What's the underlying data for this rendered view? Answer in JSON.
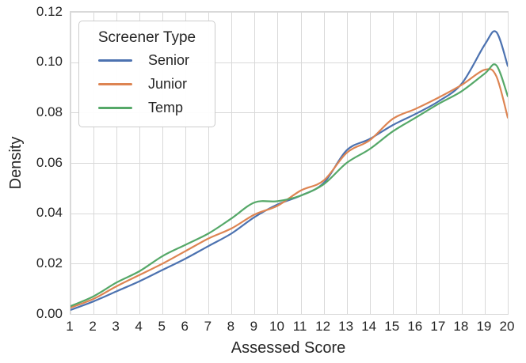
{
  "colors": {
    "background": "#ffffff",
    "grid": "#d9d9d9",
    "text": "#262626",
    "senior": "#4C72B0",
    "junior": "#DD8452",
    "temp": "#55A868"
  },
  "legend": {
    "title": "Screener Type"
  },
  "chart_data": {
    "type": "line",
    "title": "",
    "xlabel": "Assessed Score",
    "ylabel": "Density",
    "xlim": [
      1,
      20
    ],
    "ylim": [
      0,
      0.12
    ],
    "x_ticks": [
      1,
      2,
      3,
      4,
      5,
      6,
      7,
      8,
      9,
      10,
      11,
      12,
      13,
      14,
      15,
      16,
      17,
      18,
      19,
      20
    ],
    "y_ticks": [
      0.0,
      0.02,
      0.04,
      0.06,
      0.08,
      0.1,
      0.12
    ],
    "y_tick_labels": [
      "0.00",
      "0.02",
      "0.04",
      "0.06",
      "0.08",
      "0.10",
      "0.12"
    ],
    "grid": true,
    "legend_title": "Screener Type",
    "legend_position": "upper left",
    "series": [
      {
        "name": "Senior",
        "color": "#4C72B0",
        "points": [
          [
            1,
            0.0016
          ],
          [
            2,
            0.005
          ],
          [
            3,
            0.009
          ],
          [
            4,
            0.013
          ],
          [
            5,
            0.0175
          ],
          [
            6,
            0.022
          ],
          [
            7,
            0.027
          ],
          [
            8,
            0.032
          ],
          [
            9,
            0.0385
          ],
          [
            10,
            0.0435
          ],
          [
            11,
            0.047
          ],
          [
            12,
            0.052
          ],
          [
            13,
            0.065
          ],
          [
            14,
            0.0695
          ],
          [
            15,
            0.075
          ],
          [
            16,
            0.0795
          ],
          [
            17,
            0.0845
          ],
          [
            18,
            0.0915
          ],
          [
            19,
            0.107
          ],
          [
            19.5,
            0.112
          ],
          [
            20,
            0.0985
          ]
        ]
      },
      {
        "name": "Junior",
        "color": "#DD8452",
        "points": [
          [
            1,
            0.0025
          ],
          [
            2,
            0.006
          ],
          [
            3,
            0.011
          ],
          [
            4,
            0.0155
          ],
          [
            5,
            0.02
          ],
          [
            6,
            0.025
          ],
          [
            7,
            0.03
          ],
          [
            8,
            0.034
          ],
          [
            9,
            0.0395
          ],
          [
            10,
            0.043
          ],
          [
            11,
            0.049
          ],
          [
            12,
            0.053
          ],
          [
            13,
            0.064
          ],
          [
            14,
            0.069
          ],
          [
            15,
            0.0775
          ],
          [
            16,
            0.0815
          ],
          [
            17,
            0.086
          ],
          [
            18,
            0.091
          ],
          [
            19,
            0.097
          ],
          [
            19.5,
            0.0945
          ],
          [
            20,
            0.078
          ]
        ]
      },
      {
        "name": "Temp",
        "color": "#55A868",
        "points": [
          [
            1,
            0.0031
          ],
          [
            2,
            0.007
          ],
          [
            3,
            0.0125
          ],
          [
            4,
            0.017
          ],
          [
            5,
            0.023
          ],
          [
            6,
            0.0275
          ],
          [
            7,
            0.032
          ],
          [
            8,
            0.038
          ],
          [
            9,
            0.0443
          ],
          [
            10,
            0.0448
          ],
          [
            11,
            0.047
          ],
          [
            12,
            0.0515
          ],
          [
            13,
            0.06
          ],
          [
            14,
            0.0655
          ],
          [
            15,
            0.0725
          ],
          [
            16,
            0.078
          ],
          [
            17,
            0.0835
          ],
          [
            18,
            0.0885
          ],
          [
            19,
            0.0955
          ],
          [
            19.5,
            0.0988
          ],
          [
            20,
            0.0865
          ]
        ]
      }
    ]
  }
}
